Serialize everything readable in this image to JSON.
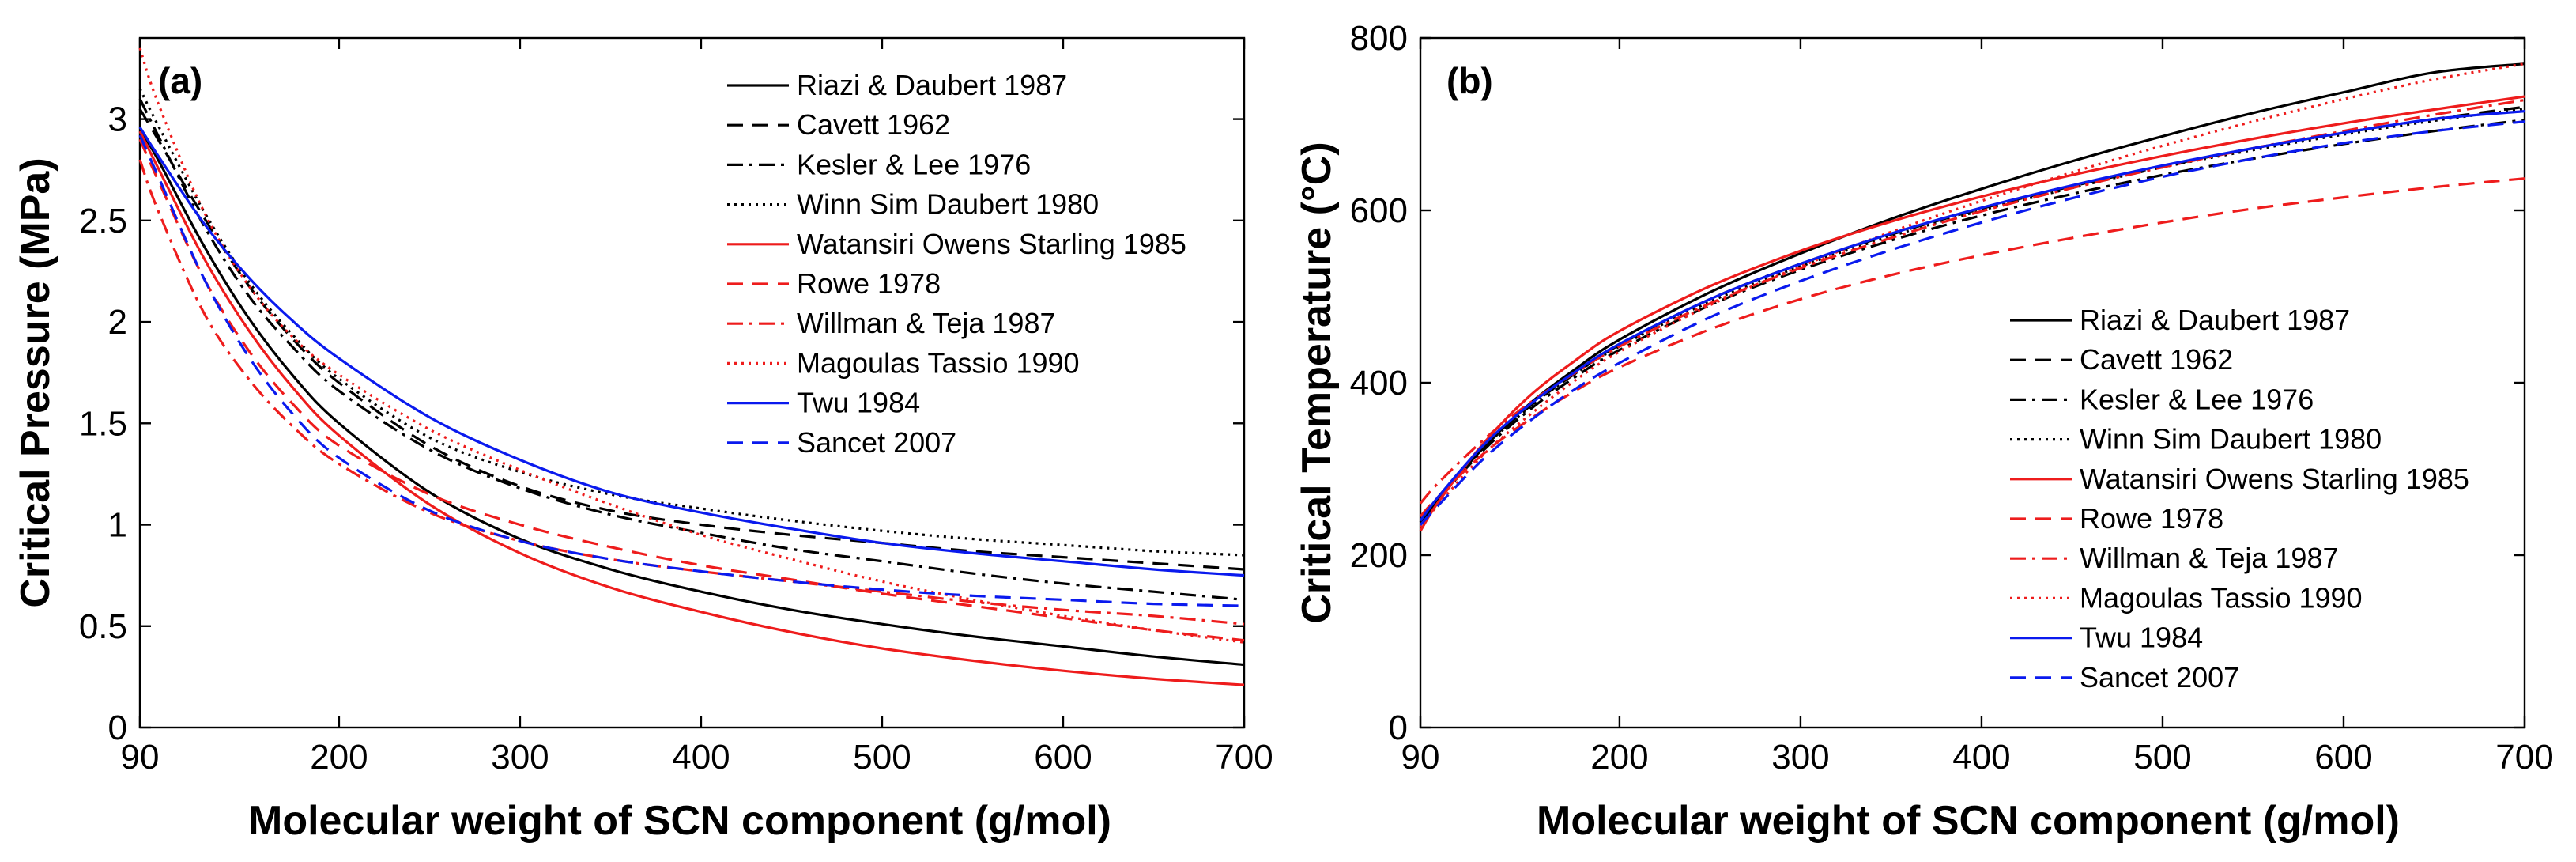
{
  "chart_data": [
    {
      "type": "line",
      "panel_label": "(a)",
      "title": "",
      "xlabel": "Molecular weight of SCN component  (g/mol)",
      "ylabel": "Critical Pressure (MPa)",
      "xlim": [
        90,
        700
      ],
      "ylim": [
        0,
        3.4
      ],
      "xticks": [
        90,
        200,
        300,
        400,
        500,
        600,
        700
      ],
      "yticks": [
        0,
        0.5,
        1,
        1.5,
        2,
        2.5,
        3
      ],
      "ytick_labels": [
        "0",
        "0.5",
        "1",
        "1.5",
        "2",
        "2.5",
        "3"
      ],
      "legend_position": "top-right",
      "x": [
        90,
        100,
        125,
        150,
        175,
        200,
        250,
        300,
        350,
        400,
        450,
        500,
        550,
        600,
        650,
        700
      ],
      "series": [
        {
          "name": "Riazi & Daubert 1987",
          "color": "#000000",
          "dash": "solid",
          "values": [
            2.95,
            2.8,
            2.38,
            2.02,
            1.73,
            1.5,
            1.16,
            0.93,
            0.78,
            0.67,
            0.58,
            0.51,
            0.45,
            0.4,
            0.35,
            0.31
          ]
        },
        {
          "name": "Cavett 1962",
          "color": "#000000",
          "dash": "dashed",
          "values": [
            3.05,
            2.9,
            2.52,
            2.18,
            1.91,
            1.7,
            1.39,
            1.19,
            1.07,
            1.0,
            0.95,
            0.91,
            0.87,
            0.84,
            0.81,
            0.78
          ]
        },
        {
          "name": "Kesler & Lee 1976",
          "color": "#000000",
          "dash": "dashdot",
          "values": [
            3.1,
            2.92,
            2.48,
            2.13,
            1.87,
            1.66,
            1.37,
            1.18,
            1.05,
            0.96,
            0.88,
            0.82,
            0.76,
            0.71,
            0.67,
            0.63
          ]
        },
        {
          "name": "Winn Sim Daubert 1980",
          "color": "#000000",
          "dash": "dotted",
          "values": [
            3.15,
            2.97,
            2.55,
            2.2,
            1.93,
            1.72,
            1.43,
            1.26,
            1.15,
            1.08,
            1.02,
            0.97,
            0.93,
            0.9,
            0.87,
            0.85
          ]
        },
        {
          "name": "Watansiri Owens Starling 1985",
          "color": "#ee1c1c",
          "dash": "solid",
          "values": [
            2.94,
            2.76,
            2.32,
            1.96,
            1.67,
            1.44,
            1.1,
            0.86,
            0.69,
            0.57,
            0.47,
            0.39,
            0.33,
            0.28,
            0.24,
            0.21
          ]
        },
        {
          "name": "Rowe 1978",
          "color": "#ee1c1c",
          "dash": "dashed",
          "values": [
            2.9,
            2.7,
            2.22,
            1.86,
            1.59,
            1.39,
            1.15,
            1.0,
            0.89,
            0.8,
            0.73,
            0.66,
            0.6,
            0.54,
            0.48,
            0.43
          ]
        },
        {
          "name": "Willman & Teja 1987",
          "color": "#ee1c1c",
          "dash": "dashdot",
          "values": [
            2.8,
            2.55,
            2.05,
            1.72,
            1.48,
            1.3,
            1.06,
            0.92,
            0.83,
            0.77,
            0.72,
            0.67,
            0.62,
            0.58,
            0.55,
            0.51
          ]
        },
        {
          "name": "Magoulas Tassio 1990",
          "color": "#ee1c1c",
          "dash": "dotted",
          "values": [
            3.35,
            3.08,
            2.55,
            2.18,
            1.92,
            1.74,
            1.47,
            1.27,
            1.1,
            0.95,
            0.83,
            0.72,
            0.63,
            0.55,
            0.48,
            0.42
          ]
        },
        {
          "name": "Twu 1984",
          "color": "#0a1aee",
          "dash": "solid",
          "values": [
            2.96,
            2.82,
            2.49,
            2.22,
            2.0,
            1.82,
            1.53,
            1.32,
            1.16,
            1.06,
            0.98,
            0.91,
            0.86,
            0.82,
            0.78,
            0.75
          ]
        },
        {
          "name": "Sancet 2007",
          "color": "#0a1aee",
          "dash": "dashed",
          "values": [
            2.92,
            2.72,
            2.22,
            1.83,
            1.54,
            1.33,
            1.07,
            0.92,
            0.83,
            0.77,
            0.72,
            0.68,
            0.65,
            0.63,
            0.61,
            0.6
          ]
        }
      ]
    },
    {
      "type": "line",
      "panel_label": "(b)",
      "title": "",
      "xlabel": "Molecular weight of SCN component  (g/mol)",
      "ylabel": "Critical Temperature (°C)",
      "xlim": [
        90,
        700
      ],
      "ylim": [
        0,
        800
      ],
      "xticks": [
        90,
        200,
        300,
        400,
        500,
        600,
        700
      ],
      "yticks": [
        0,
        200,
        400,
        600,
        800
      ],
      "ytick_labels": [
        "0",
        "200",
        "400",
        "600",
        "800"
      ],
      "legend_position": "bottom-right",
      "x": [
        90,
        100,
        125,
        150,
        175,
        200,
        250,
        300,
        350,
        400,
        450,
        500,
        550,
        600,
        650,
        700
      ],
      "series": [
        {
          "name": "Riazi & Daubert 1987",
          "color": "#000000",
          "dash": "solid",
          "values": [
            235,
            265,
            325,
            375,
            415,
            450,
            505,
            550,
            590,
            625,
            657,
            686,
            713,
            737,
            760,
            770
          ]
        },
        {
          "name": "Cavett 1962",
          "color": "#000000",
          "dash": "dashed",
          "values": [
            238,
            266,
            325,
            372,
            410,
            444,
            497,
            538,
            572,
            602,
            628,
            651,
            672,
            690,
            706,
            720
          ]
        },
        {
          "name": "Kesler & Lee 1976",
          "color": "#000000",
          "dash": "dashdot",
          "values": [
            238,
            265,
            322,
            368,
            406,
            438,
            490,
            531,
            565,
            594,
            619,
            641,
            660,
            677,
            692,
            705
          ]
        },
        {
          "name": "Winn Sim Daubert 1980",
          "color": "#000000",
          "dash": "dotted",
          "values": [
            240,
            267,
            325,
            371,
            410,
            442,
            494,
            535,
            570,
            600,
            626,
            650,
            670,
            688,
            704,
            718
          ]
        },
        {
          "name": "Watansiri Owens Starling 1985",
          "color": "#ee1c1c",
          "dash": "solid",
          "values": [
            228,
            262,
            330,
            384,
            425,
            460,
            512,
            553,
            587,
            616,
            641,
            663,
            683,
            701,
            717,
            732
          ]
        },
        {
          "name": "Rowe 1978",
          "color": "#ee1c1c",
          "dash": "dashed",
          "values": [
            245,
            268,
            318,
            357,
            390,
            418,
            462,
            497,
            525,
            548,
            568,
            586,
            602,
            615,
            627,
            637
          ]
        },
        {
          "name": "Willman & Teja 1987",
          "color": "#ee1c1c",
          "dash": "dashdot",
          "values": [
            260,
            284,
            334,
            376,
            411,
            442,
            492,
            533,
            568,
            599,
            626,
            650,
            672,
            692,
            711,
            728
          ]
        },
        {
          "name": "Magoulas Tassio 1990",
          "color": "#ee1c1c",
          "dash": "dotted",
          "values": [
            232,
            259,
            317,
            362,
            402,
            436,
            490,
            535,
            575,
            611,
            644,
            675,
            703,
            729,
            752,
            770
          ]
        },
        {
          "name": "Twu 1984",
          "color": "#0a1aee",
          "dash": "solid",
          "values": [
            240,
            268,
            328,
            374,
            412,
            445,
            497,
            538,
            573,
            603,
            629,
            652,
            672,
            690,
            706,
            715
          ]
        },
        {
          "name": "Sancet 2007",
          "color": "#0a1aee",
          "dash": "dashed",
          "values": [
            235,
            258,
            312,
            355,
            392,
            423,
            476,
            518,
            554,
            586,
            614,
            639,
            660,
            678,
            692,
            703
          ]
        }
      ]
    }
  ]
}
